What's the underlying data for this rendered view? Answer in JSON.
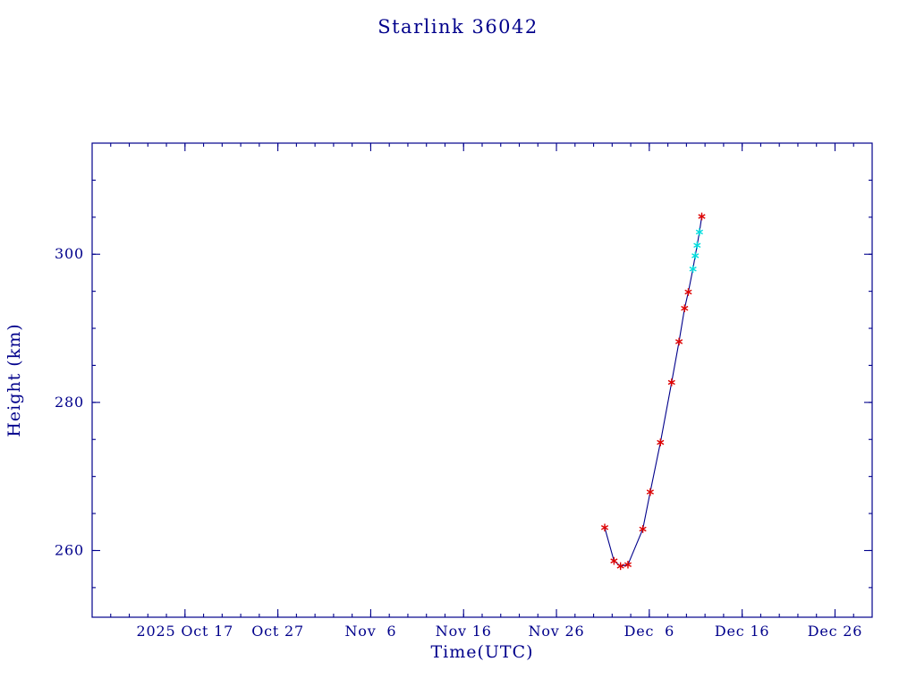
{
  "page": {
    "background": "#ffffff"
  },
  "chart_data": {
    "type": "line",
    "title": "Starlink 36042",
    "xlabel": "Time(UTC)",
    "ylabel": "Height (km)",
    "grid": false,
    "legend": "none",
    "axis_color": "#00008b",
    "line_color": "#00008b",
    "marker_style": "asterisk",
    "marker_colors": {
      "red": "#dd0000",
      "cyan": "#00dddd"
    },
    "x_unit": "days, 0 = 2025 Oct 7",
    "xlim": [
      0,
      84
    ],
    "ylim": [
      251,
      315
    ],
    "x_ticks": [
      {
        "value": 10,
        "label": "2025 Oct 17"
      },
      {
        "value": 20,
        "label": "Oct 27"
      },
      {
        "value": 30,
        "label": "Nov  6"
      },
      {
        "value": 40,
        "label": "Nov 16"
      },
      {
        "value": 50,
        "label": "Nov 26"
      },
      {
        "value": 60,
        "label": "Dec  6"
      },
      {
        "value": 70,
        "label": "Dec 16"
      },
      {
        "value": 80,
        "label": "Dec 26"
      }
    ],
    "y_ticks": [
      {
        "value": 260,
        "label": "260"
      },
      {
        "value": 280,
        "label": "280"
      },
      {
        "value": 300,
        "label": "300"
      }
    ],
    "x_minor": {
      "start": 2,
      "step": 2
    },
    "y_minor": {
      "start": 255,
      "step": 5
    },
    "points": [
      {
        "x": 55.2,
        "y": 263.1,
        "color": "red"
      },
      {
        "x": 56.2,
        "y": 258.6,
        "color": "red"
      },
      {
        "x": 56.9,
        "y": 257.9,
        "color": "red"
      },
      {
        "x": 57.7,
        "y": 258.1,
        "color": "red"
      },
      {
        "x": 59.3,
        "y": 262.9,
        "color": "red"
      },
      {
        "x": 60.1,
        "y": 267.9,
        "color": "red"
      },
      {
        "x": 61.2,
        "y": 274.6,
        "color": "red"
      },
      {
        "x": 62.4,
        "y": 282.7,
        "color": "red"
      },
      {
        "x": 63.2,
        "y": 288.2,
        "color": "red"
      },
      {
        "x": 63.8,
        "y": 292.7,
        "color": "red"
      },
      {
        "x": 64.2,
        "y": 294.9,
        "color": "red"
      },
      {
        "x": 64.7,
        "y": 298.0,
        "color": "cyan"
      },
      {
        "x": 64.95,
        "y": 299.8,
        "color": "cyan"
      },
      {
        "x": 65.15,
        "y": 301.2,
        "color": "cyan"
      },
      {
        "x": 65.4,
        "y": 303.0,
        "color": "cyan"
      },
      {
        "x": 65.65,
        "y": 305.1,
        "color": "red"
      }
    ]
  }
}
